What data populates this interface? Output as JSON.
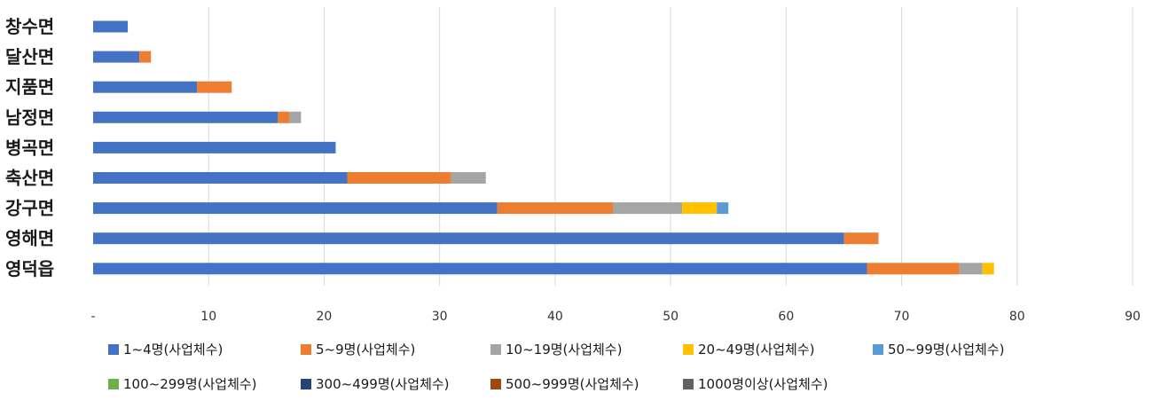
{
  "chart_data": {
    "type": "bar",
    "orientation": "horizontal",
    "stacked": true,
    "categories": [
      "창수면",
      "달산면",
      "지품면",
      "남정면",
      "병곡면",
      "축산면",
      "강구면",
      "영해면",
      "영덕읍"
    ],
    "series": [
      {
        "name": "1~4명(사업체수)",
        "color": "#4472C4",
        "values": [
          3,
          4,
          9,
          16,
          21,
          22,
          35,
          65,
          67
        ]
      },
      {
        "name": "5~9명(사업체수)",
        "color": "#ED7D31",
        "values": [
          0,
          1,
          3,
          1,
          0,
          9,
          10,
          3,
          8
        ]
      },
      {
        "name": "10~19명(사업체수)",
        "color": "#A5A5A5",
        "values": [
          0,
          0,
          0,
          1,
          0,
          3,
          6,
          0,
          2
        ]
      },
      {
        "name": "20~49명(사업체수)",
        "color": "#FFC000",
        "values": [
          0,
          0,
          0,
          0,
          0,
          0,
          3,
          0,
          1
        ]
      },
      {
        "name": "50~99명(사업체수)",
        "color": "#5B9BD5",
        "values": [
          0,
          0,
          0,
          0,
          0,
          0,
          1,
          0,
          0
        ]
      },
      {
        "name": "100~299명(사업체수)",
        "color": "#70AD47",
        "values": [
          0,
          0,
          0,
          0,
          0,
          0,
          0,
          0,
          0
        ]
      },
      {
        "name": "300~499명(사업체수)",
        "color": "#264478",
        "values": [
          0,
          0,
          0,
          0,
          0,
          0,
          0,
          0,
          0
        ]
      },
      {
        "name": "500~999명(사업체수)",
        "color": "#9E480E",
        "values": [
          0,
          0,
          0,
          0,
          0,
          0,
          0,
          0,
          0
        ]
      },
      {
        "name": "1000명이상(사업체수)",
        "color": "#636363",
        "values": [
          0,
          0,
          0,
          0,
          0,
          0,
          0,
          0,
          0
        ]
      }
    ],
    "xlim": [
      0,
      90
    ],
    "x_ticks": [
      0,
      10,
      20,
      30,
      40,
      50,
      60,
      70,
      80,
      90
    ],
    "x_tick_labels": [
      "-",
      "10",
      "20",
      "30",
      "40",
      "50",
      "60",
      "70",
      "80",
      "90"
    ],
    "grid": true,
    "legend_position": "bottom"
  }
}
